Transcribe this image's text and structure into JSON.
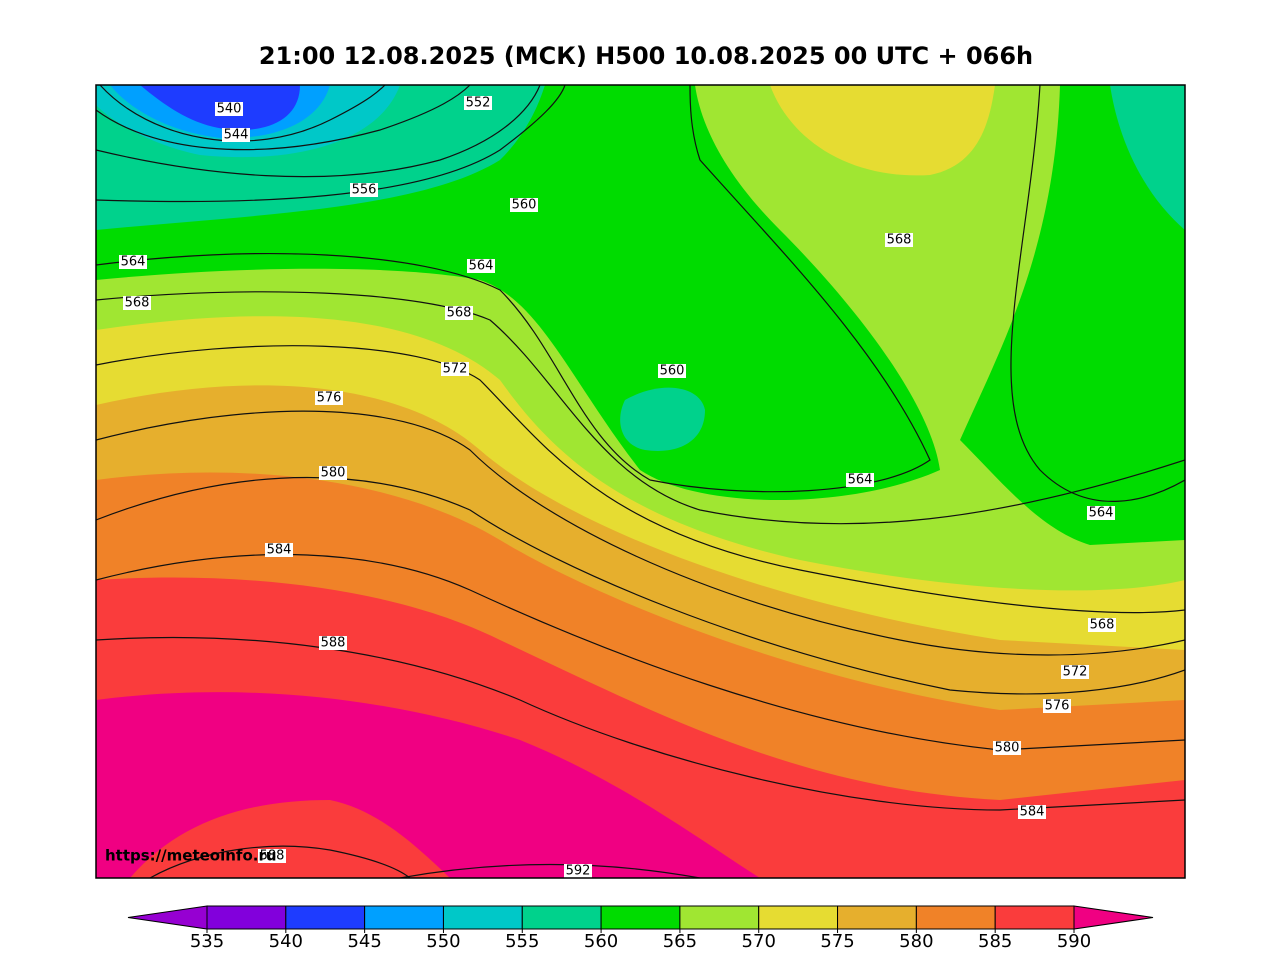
{
  "title": "21:00 12.08.2025 (МСК) H500  10.08.2025 00 UTC + 066h",
  "watermark": "https://meteoinfo.ru",
  "contour_labels": [
    540,
    544,
    552,
    556,
    560,
    564,
    564,
    568,
    568,
    572,
    560,
    576,
    580,
    568,
    564,
    564,
    584,
    588,
    568,
    572,
    576,
    580,
    584,
    588,
    592
  ],
  "colorbar": {
    "ticks": [
      535,
      540,
      545,
      550,
      555,
      560,
      565,
      570,
      575,
      580,
      585,
      590
    ],
    "colors": [
      "#9600d2",
      "#8200dc",
      "#1e3cff",
      "#00a0ff",
      "#00c8c8",
      "#00d28c",
      "#00dc00",
      "#a0e632",
      "#e6dc32",
      "#e6af2d",
      "#f08228",
      "#fa3c3c",
      "#f00082"
    ]
  }
}
